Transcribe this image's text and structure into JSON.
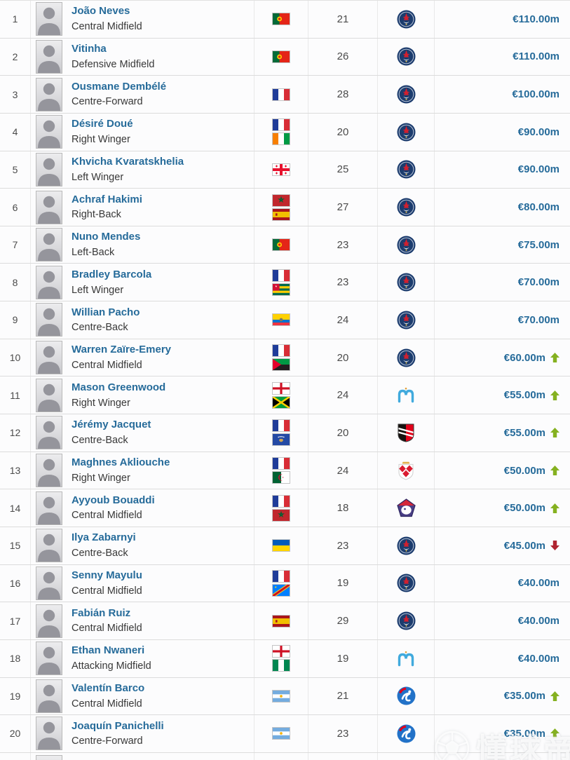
{
  "colors": {
    "player_link": "#266b9a",
    "market_value_text": "#266b9a",
    "trend_up_arrow": "#85b120",
    "trend_down_arrow": "#b02430"
  },
  "watermark": {
    "text": "懂球帝",
    "icon": "soccer-ball-icon"
  },
  "players": [
    {
      "rank": "1",
      "name": "João Neves",
      "position": "Central Midfield",
      "nationalities": [
        "Portugal"
      ],
      "age": "21",
      "club": "Paris Saint-Germain",
      "value": "€110.00m",
      "trend": ""
    },
    {
      "rank": "2",
      "name": "Vitinha",
      "position": "Defensive Midfield",
      "nationalities": [
        "Portugal"
      ],
      "age": "26",
      "club": "Paris Saint-Germain",
      "value": "€110.00m",
      "trend": ""
    },
    {
      "rank": "3",
      "name": "Ousmane Dembélé",
      "position": "Centre-Forward",
      "nationalities": [
        "France"
      ],
      "age": "28",
      "club": "Paris Saint-Germain",
      "value": "€100.00m",
      "trend": ""
    },
    {
      "rank": "4",
      "name": "Désiré Doué",
      "position": "Right Winger",
      "nationalities": [
        "France",
        "Ivory Coast"
      ],
      "age": "20",
      "club": "Paris Saint-Germain",
      "value": "€90.00m",
      "trend": ""
    },
    {
      "rank": "5",
      "name": "Khvicha Kvaratskhelia",
      "position": "Left Winger",
      "nationalities": [
        "Georgia"
      ],
      "age": "25",
      "club": "Paris Saint-Germain",
      "value": "€90.00m",
      "trend": ""
    },
    {
      "rank": "6",
      "name": "Achraf Hakimi",
      "position": "Right-Back",
      "nationalities": [
        "Morocco",
        "Spain"
      ],
      "age": "27",
      "club": "Paris Saint-Germain",
      "value": "€80.00m",
      "trend": ""
    },
    {
      "rank": "7",
      "name": "Nuno Mendes",
      "position": "Left-Back",
      "nationalities": [
        "Portugal"
      ],
      "age": "23",
      "club": "Paris Saint-Germain",
      "value": "€75.00m",
      "trend": ""
    },
    {
      "rank": "8",
      "name": "Bradley Barcola",
      "position": "Left Winger",
      "nationalities": [
        "France",
        "Togo"
      ],
      "age": "23",
      "club": "Paris Saint-Germain",
      "value": "€70.00m",
      "trend": ""
    },
    {
      "rank": "9",
      "name": "Willian Pacho",
      "position": "Centre-Back",
      "nationalities": [
        "Ecuador"
      ],
      "age": "24",
      "club": "Paris Saint-Germain",
      "value": "€70.00m",
      "trend": ""
    },
    {
      "rank": "10",
      "name": "Warren Zaïre-Emery",
      "position": "Central Midfield",
      "nationalities": [
        "France",
        "Martinique"
      ],
      "age": "20",
      "club": "Paris Saint-Germain",
      "value": "€60.00m",
      "trend": "up"
    },
    {
      "rank": "11",
      "name": "Mason Greenwood",
      "position": "Right Winger",
      "nationalities": [
        "England",
        "Jamaica"
      ],
      "age": "24",
      "club": "Olympique Marseille",
      "value": "€55.00m",
      "trend": "up"
    },
    {
      "rank": "12",
      "name": "Jérémy Jacquet",
      "position": "Centre-Back",
      "nationalities": [
        "France",
        "Kosovo"
      ],
      "age": "20",
      "club": "Stade Rennais",
      "value": "€55.00m",
      "trend": "up"
    },
    {
      "rank": "13",
      "name": "Maghnes Akliouche",
      "position": "Right Winger",
      "nationalities": [
        "France",
        "Algeria"
      ],
      "age": "24",
      "club": "AS Monaco",
      "value": "€50.00m",
      "trend": "up"
    },
    {
      "rank": "14",
      "name": "Ayyoub Bouaddi",
      "position": "Central Midfield",
      "nationalities": [
        "France",
        "Morocco"
      ],
      "age": "18",
      "club": "LOSC Lille",
      "value": "€50.00m",
      "trend": "up"
    },
    {
      "rank": "15",
      "name": "Ilya Zabarnyi",
      "position": "Centre-Back",
      "nationalities": [
        "Ukraine"
      ],
      "age": "23",
      "club": "Paris Saint-Germain",
      "value": "€45.00m",
      "trend": "down"
    },
    {
      "rank": "16",
      "name": "Senny Mayulu",
      "position": "Central Midfield",
      "nationalities": [
        "France",
        "DR Congo"
      ],
      "age": "19",
      "club": "Paris Saint-Germain",
      "value": "€40.00m",
      "trend": ""
    },
    {
      "rank": "17",
      "name": "Fabián Ruiz",
      "position": "Central Midfield",
      "nationalities": [
        "Spain"
      ],
      "age": "29",
      "club": "Paris Saint-Germain",
      "value": "€40.00m",
      "trend": ""
    },
    {
      "rank": "18",
      "name": "Ethan Nwaneri",
      "position": "Attacking Midfield",
      "nationalities": [
        "England",
        "Nigeria"
      ],
      "age": "19",
      "club": "Olympique Marseille",
      "value": "€40.00m",
      "trend": ""
    },
    {
      "rank": "19",
      "name": "Valentín Barco",
      "position": "Central Midfield",
      "nationalities": [
        "Argentina"
      ],
      "age": "21",
      "club": "RC Strasbourg",
      "value": "€35.00m",
      "trend": "up"
    },
    {
      "rank": "20",
      "name": "Joaquín Panichelli",
      "position": "Centre-Forward",
      "nationalities": [
        "Argentina"
      ],
      "age": "23",
      "club": "RC Strasbourg",
      "value": "€35.00m",
      "trend": "up"
    }
  ]
}
